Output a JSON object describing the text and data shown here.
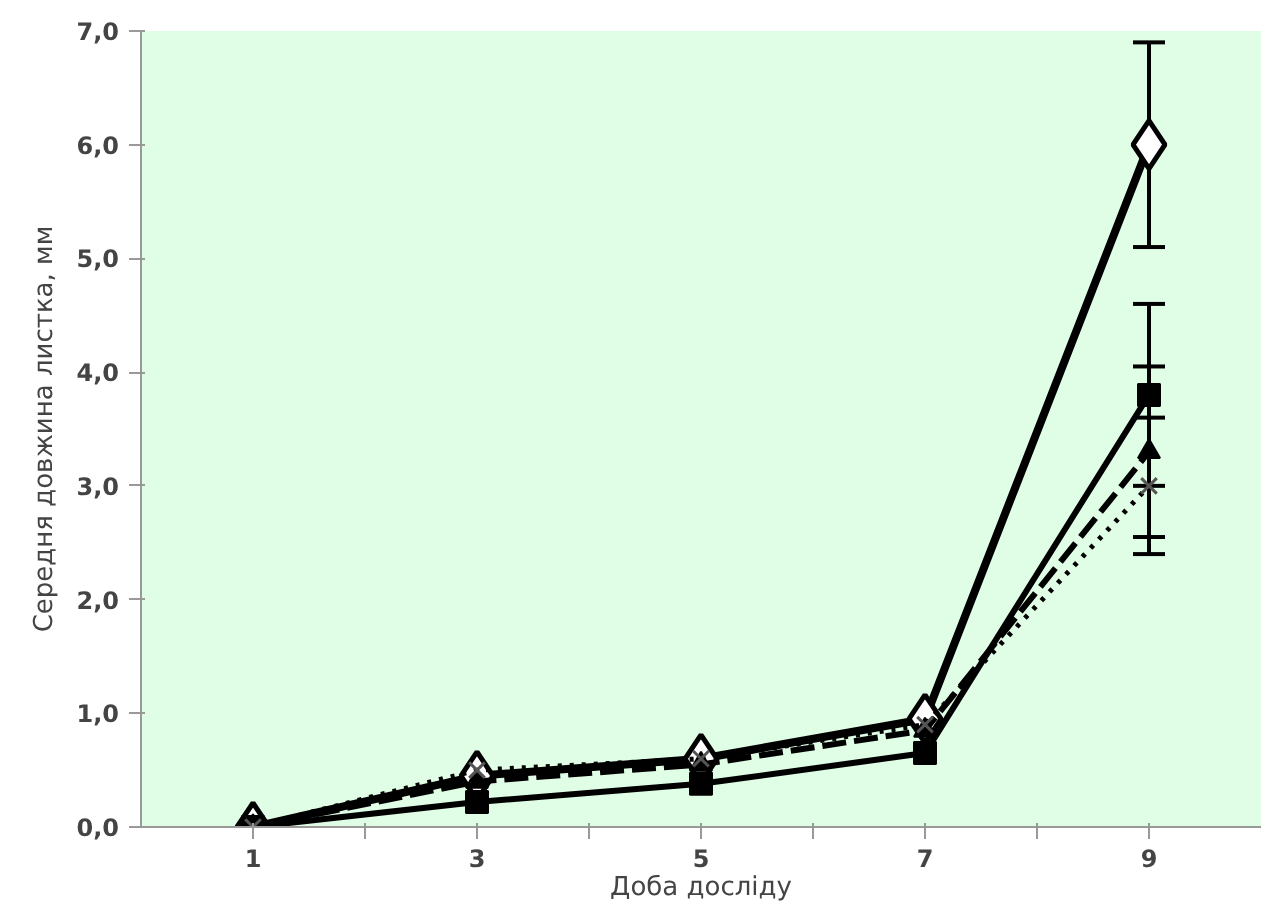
{
  "chart_data": {
    "type": "line",
    "xlabel": "Доба досліду",
    "ylabel": "Середня довжина листка, мм",
    "x": [
      1,
      3,
      5,
      7,
      9
    ],
    "xlim": [
      0,
      10
    ],
    "xticks": [
      {
        "value": 1,
        "label": "1"
      },
      {
        "value": 2,
        "label": null
      },
      {
        "value": 3,
        "label": "3"
      },
      {
        "value": 4,
        "label": null
      },
      {
        "value": 5,
        "label": "5"
      },
      {
        "value": 6,
        "label": null
      },
      {
        "value": 7,
        "label": "7"
      },
      {
        "value": 8,
        "label": null
      },
      {
        "value": 9,
        "label": "9"
      }
    ],
    "ylim": [
      0,
      7
    ],
    "yticks": [
      {
        "value": 0,
        "label": "0,0"
      },
      {
        "value": 1,
        "label": "1,0"
      },
      {
        "value": 2,
        "label": "2,0"
      },
      {
        "value": 3,
        "label": "3,0"
      },
      {
        "value": 4,
        "label": "4,0"
      },
      {
        "value": 5,
        "label": "5,0"
      },
      {
        "value": 6,
        "label": "6,0"
      },
      {
        "value": 7,
        "label": "7,0"
      }
    ],
    "grid": false,
    "series": [
      {
        "color": "#000000",
        "marker": "diamond",
        "line_style": "solid",
        "values": [
          0,
          0.45,
          0.6,
          0.95,
          6.0
        ],
        "errors": [
          null,
          null,
          null,
          null,
          0.9
        ]
      },
      {
        "color": "#000000",
        "marker": "square",
        "line_style": "solid",
        "values": [
          0,
          0.22,
          0.38,
          0.65,
          3.8
        ],
        "errors": [
          null,
          null,
          null,
          null,
          0.8
        ]
      },
      {
        "color": "#000000",
        "marker": "triangle",
        "line_style": "dashed",
        "values": [
          0,
          0.4,
          0.55,
          0.85,
          3.3
        ],
        "errors": [
          null,
          null,
          null,
          null,
          0.75
        ]
      },
      {
        "color": "#000000",
        "marker": "cross",
        "line_style": "dotted",
        "values": [
          0,
          0.5,
          0.6,
          0.9,
          3.0
        ],
        "errors": [
          null,
          null,
          null,
          null,
          0.6
        ]
      }
    ]
  }
}
